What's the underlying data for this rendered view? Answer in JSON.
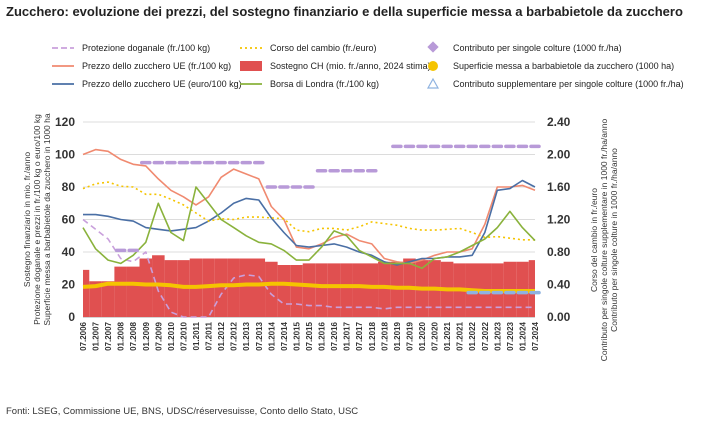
{
  "title": "Zucchero: evoluzione dei prezzi, del sostegno finanziario e della superficie messa a barbabietole da zucchero",
  "source": "Fonti: LSEG,  Commissione UE, BNS, UDSC/réservesuisse, Conto dello Stato, USC",
  "chart_data": {
    "type": "line",
    "x": [
      "07.2006",
      "01.2007",
      "07.2007",
      "01.2008",
      "07.2008",
      "01.2009",
      "07.2009",
      "01.2010",
      "07.2010",
      "01.2011",
      "07.2011",
      "01.2012",
      "07.2012",
      "01.2013",
      "07.2013",
      "01.2014",
      "07.2014",
      "01.2015",
      "07.2015",
      "01.2016",
      "07.2016",
      "01.2017",
      "07.2017",
      "01.2018",
      "07.2018",
      "01.2019",
      "07.2019",
      "01.2020",
      "07.2020",
      "01.2021",
      "07.2021",
      "01.2022",
      "07.2022",
      "01.2023",
      "07.2023",
      "01.2024",
      "07.2024"
    ],
    "y_left": {
      "ylim": [
        0,
        120
      ],
      "ticks": [
        "0",
        "20",
        "40",
        "60",
        "80",
        "100",
        "120"
      ],
      "label_lines": [
        "Sostegno finanziario in mio. fr./anno",
        "Protezione doganale e prezzi in fr./100 kg o euro/100 kg",
        "Superficie messa a barbabietole da zucchero in 1000 ha"
      ]
    },
    "y_right": {
      "ylim": [
        0,
        2.4
      ],
      "ticks": [
        "0.00",
        "0.40",
        "0.80",
        "1.20",
        "1.60",
        "2.00",
        "2.40"
      ],
      "label_lines": [
        "Corso del cambio in fr./euro",
        "Contributo per singole colture supplementare in 1000 fr./ha/anno",
        "Contributo per singole colture in 1000 fr./ha/anno"
      ]
    },
    "grid": true,
    "legend": "top",
    "series": [
      {
        "name": "Protezione doganale (fr./100 kg)",
        "axis": "left",
        "color": "#c9a0dc",
        "style": "dashed",
        "values": [
          60,
          54,
          48,
          36,
          34,
          40,
          16,
          3,
          0,
          0,
          0,
          14,
          24,
          26,
          25,
          14,
          8,
          8,
          7,
          7,
          6,
          6,
          6,
          6,
          5,
          6,
          6,
          6,
          6,
          6,
          6,
          6,
          6,
          6,
          6,
          6,
          6
        ]
      },
      {
        "name": "Prezzo dello zucchero UE (fr./100 kg)",
        "axis": "left",
        "color": "#f08a70",
        "style": "solid",
        "values": [
          100,
          103,
          102,
          97,
          94,
          93,
          85,
          78,
          74,
          69,
          74,
          86,
          91,
          88,
          85,
          68,
          60,
          43,
          42,
          45,
          49,
          51,
          47,
          45,
          36,
          34,
          33,
          35,
          38,
          40,
          40,
          42,
          57,
          80,
          80,
          81,
          78
        ]
      },
      {
        "name": "Prezzo dello zucchero UE (euro/100 kg)",
        "axis": "left",
        "color": "#4a6fa5",
        "style": "solid",
        "values": [
          63,
          63,
          62,
          60,
          59,
          55,
          54,
          53,
          54,
          55,
          59,
          64,
          70,
          73,
          72,
          61,
          52,
          44,
          43,
          44,
          45,
          43,
          40,
          38,
          34,
          32,
          34,
          36,
          36,
          37,
          37,
          38,
          52,
          78,
          79,
          84,
          80
        ]
      },
      {
        "name": "Corso del cambio (fr./euro)",
        "axis": "right",
        "color": "#f5c400",
        "style": "dotted",
        "values": [
          1.58,
          1.64,
          1.66,
          1.61,
          1.6,
          1.51,
          1.51,
          1.45,
          1.38,
          1.28,
          1.18,
          1.21,
          1.2,
          1.23,
          1.23,
          1.22,
          1.21,
          1.07,
          1.05,
          1.09,
          1.09,
          1.07,
          1.11,
          1.17,
          1.15,
          1.13,
          1.09,
          1.07,
          1.07,
          1.08,
          1.09,
          1.04,
          0.98,
          0.99,
          0.97,
          0.95,
          0.95
        ]
      },
      {
        "name": "Borsa di Londra (fr./100 kg)",
        "axis": "left",
        "color": "#8ab23c",
        "style": "solid",
        "values": [
          55,
          42,
          35,
          33,
          38,
          46,
          70,
          52,
          47,
          80,
          70,
          60,
          55,
          50,
          46,
          45,
          41,
          35,
          35,
          43,
          53,
          50,
          41,
          37,
          33,
          33,
          33,
          30,
          36,
          37,
          40,
          44,
          48,
          55,
          65,
          55,
          47
        ]
      },
      {
        "name": "Contributo per singole colture (1000 fr./ha)",
        "axis": "right",
        "color": "#b89ad8",
        "style": "diamonds",
        "values": [
          null,
          null,
          null,
          0.82,
          0.82,
          1.9,
          1.9,
          1.9,
          1.9,
          1.9,
          1.9,
          1.9,
          1.9,
          1.9,
          1.9,
          1.6,
          1.6,
          1.6,
          1.6,
          1.8,
          1.8,
          1.8,
          1.8,
          1.8,
          null,
          2.1,
          2.1,
          2.1,
          2.1,
          2.1,
          2.1,
          2.1,
          2.1,
          2.1,
          2.1,
          2.1,
          2.1
        ]
      },
      {
        "name": "Superficie messa a barbabietole da zucchero (1000 ha)",
        "axis": "left",
        "color": "#f5c400",
        "style": "thick",
        "values": [
          18.5,
          19,
          20.5,
          20.5,
          20.5,
          20,
          20,
          19.5,
          18.5,
          18.5,
          19,
          19.5,
          19.5,
          20,
          20,
          20.5,
          20.5,
          20,
          19.5,
          19,
          19,
          19,
          19,
          18.5,
          18.5,
          18,
          18,
          17.5,
          17.5,
          17,
          17,
          16.5,
          16,
          16,
          16,
          16,
          16
        ]
      },
      {
        "name": "Contributo supplementare per singole colture (1000 fr./ha)",
        "axis": "right",
        "color": "#8fb3e0",
        "style": "triangles",
        "values": [
          null,
          null,
          null,
          null,
          null,
          null,
          null,
          null,
          null,
          null,
          null,
          null,
          null,
          null,
          null,
          null,
          null,
          null,
          null,
          null,
          null,
          null,
          null,
          null,
          null,
          null,
          null,
          null,
          null,
          null,
          null,
          0.3,
          0.3,
          0.3,
          0.3,
          0.3,
          0.3
        ]
      },
      {
        "name": "Sostegno CH (mio. fr./anno, 2024 stima)",
        "axis": "left",
        "color": "#e05050",
        "style": "bars",
        "values": [
          29,
          22,
          22,
          31,
          31,
          36,
          38,
          35,
          35,
          36,
          36,
          36,
          36,
          36,
          36,
          34,
          32,
          32,
          33,
          33,
          33,
          33,
          33,
          33,
          34,
          34,
          36,
          35,
          35,
          34,
          33,
          33,
          33,
          33,
          34,
          34,
          35
        ]
      }
    ]
  }
}
